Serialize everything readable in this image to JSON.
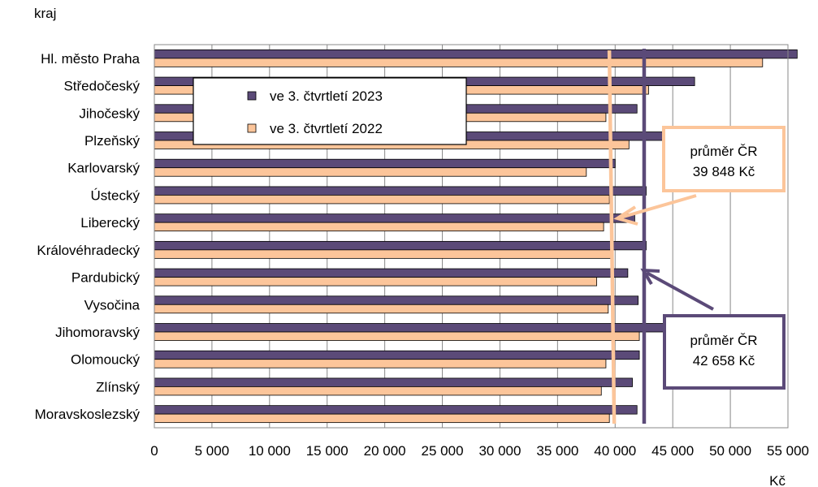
{
  "chart_data": {
    "type": "bar",
    "orientation": "horizontal",
    "ylabel": "kraj",
    "xlabel": "Kč",
    "xlim": [
      0,
      55000
    ],
    "x_ticks": [
      0,
      5000,
      10000,
      15000,
      20000,
      25000,
      30000,
      35000,
      40000,
      45000,
      50000,
      55000
    ],
    "x_tick_labels": [
      "0",
      "5 000",
      "10 000",
      "15 000",
      "20 000",
      "25 000",
      "30 000",
      "35 000",
      "40 000",
      "45 000",
      "50 000",
      "55 000"
    ],
    "grid": true,
    "legend_position": "top-center",
    "categories": [
      "Hl. město Praha",
      "Středočeský",
      "Jihočeský",
      "Plzeňský",
      "Karlovarský",
      "Ústecký",
      "Liberecký",
      "Královéhradecký",
      "Pardubický",
      "Vysočina",
      "Jihomoravský",
      "Olomoucký",
      "Zlínský",
      "Moravskoslezský"
    ],
    "series": [
      {
        "name": "ve 3. čtvrtletí 2023",
        "color": "#5b4a78",
        "values": [
          55800,
          46900,
          41900,
          44500,
          40000,
          42700,
          41700,
          42700,
          41100,
          42000,
          45000,
          42100,
          41500,
          41900
        ]
      },
      {
        "name": "ve 3. čtvrtletí 2022",
        "color": "#fcc59a",
        "values": [
          52800,
          42900,
          39200,
          41200,
          37500,
          39500,
          39000,
          39800,
          38400,
          39400,
          42100,
          39200,
          38800,
          39500
        ]
      }
    ],
    "reference_lines": [
      {
        "label": "průměr ČR",
        "value_text": "42 658 Kč",
        "value": 42658,
        "color": "#5b4a78"
      },
      {
        "label": "průměr ČR",
        "value_text": "39 848 Kč",
        "value": 39848,
        "color": "#fcc59a"
      }
    ]
  }
}
